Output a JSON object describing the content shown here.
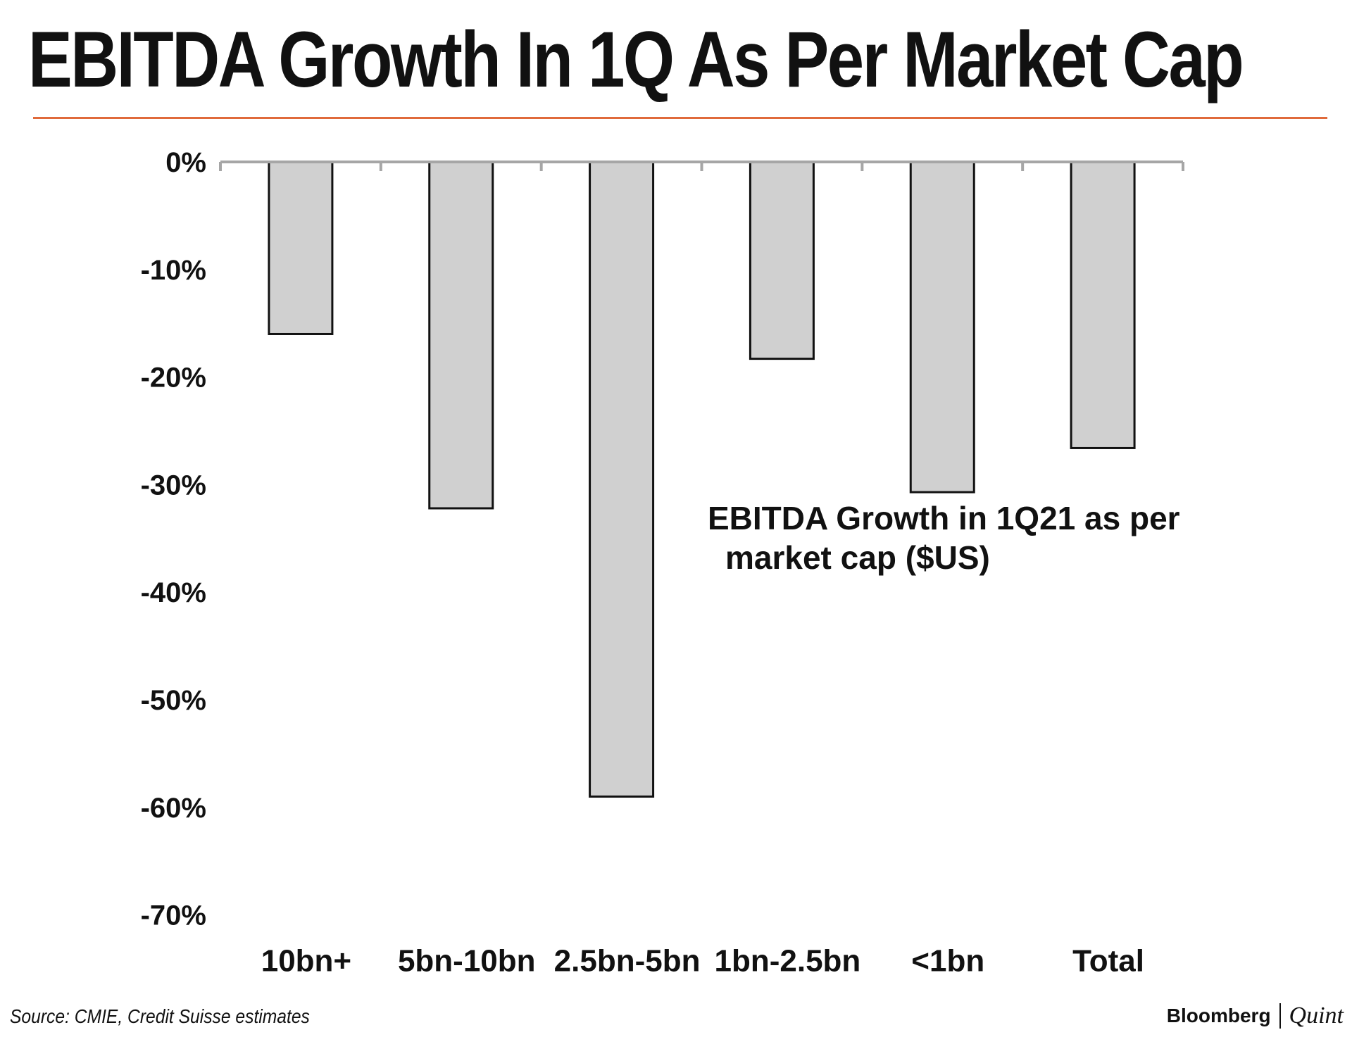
{
  "header": {
    "title": "EBITDA Growth In 1Q As Per Market Cap"
  },
  "chart_data": {
    "type": "bar",
    "title": "EBITDA Growth In 1Q As Per Market Cap",
    "annotation": [
      "EBITDA Growth in 1Q21 as per",
      "market cap ($US)"
    ],
    "categories": [
      "10bn+",
      "5bn-10bn",
      "2.5bn-5bn",
      "1bn-2.5bn",
      "<1bn",
      "Total"
    ],
    "series": [
      {
        "name": "EBITDA Growth in 1Q21 as per market cap ($US)",
        "values": [
          -16,
          -32.2,
          -59,
          -18.3,
          -30.7,
          -26.6
        ]
      }
    ],
    "yticks": [
      0,
      -10,
      -20,
      -30,
      -40,
      -50,
      -60,
      -70
    ],
    "ytick_labels": [
      "0%",
      "-10%",
      "-20%",
      "-30%",
      "-40%",
      "-50%",
      "-60%",
      "-70%"
    ],
    "ylim": [
      -70,
      0
    ],
    "xlabel": "",
    "ylabel": "",
    "grid": false,
    "bar_color": "#d0d0d0",
    "axis_color": "#a6a6a6"
  },
  "footer": {
    "source": "Source: CMIE, Credit Suisse estimates",
    "brand_left": "Bloomberg",
    "brand_right": "Quint"
  },
  "colors": {
    "title_rule": "#e06a3b",
    "text": "#111111"
  }
}
